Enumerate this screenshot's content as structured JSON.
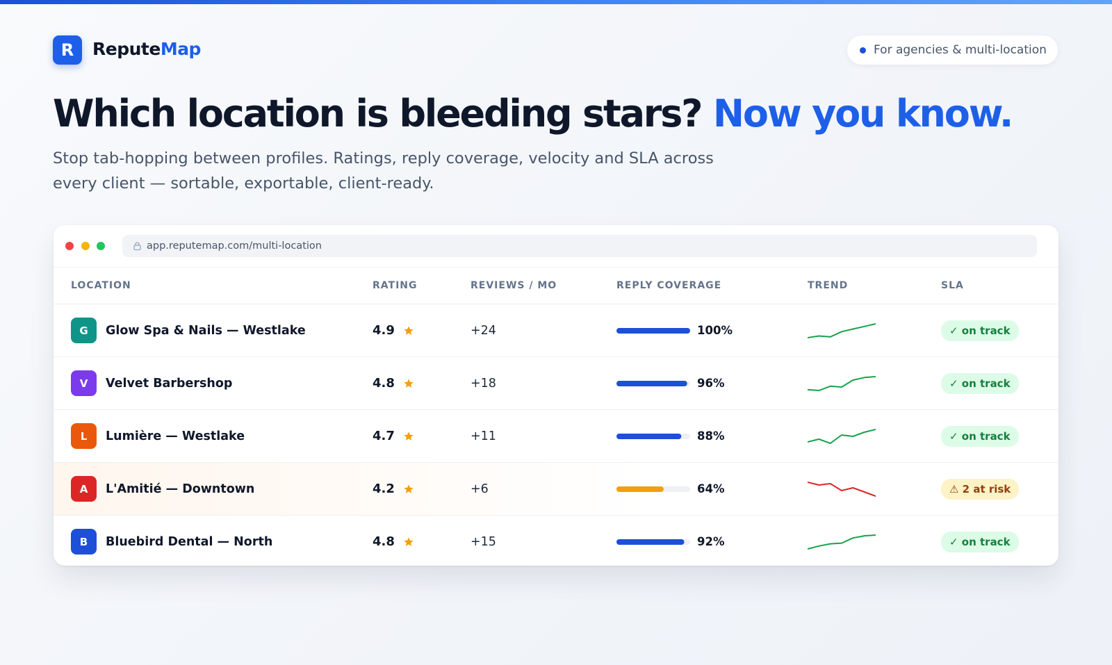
{
  "brand": {
    "letter": "R",
    "name": "Repute",
    "name_accent": "Map"
  },
  "badge": "For agencies & multi-location",
  "headline": {
    "main": "Which location is bleeding stars?",
    "accent": "Now you know."
  },
  "subtitle": "Stop tab-hopping between profiles. Ratings, reply coverage, velocity and SLA across every client — sortable, exportable, client-ready.",
  "window": {
    "url": "app.reputemap.com/multi-location"
  },
  "table": {
    "headers": [
      "LOCATION",
      "RATING",
      "REVIEWS / MO",
      "REPLY COVERAGE",
      "TREND",
      "SLA"
    ],
    "rows": [
      {
        "letter": "G",
        "avatar_color": "#0f9488",
        "name": "Glow Spa & Nails — Westlake",
        "rating": "4.9",
        "reviews": "+24",
        "coverage": {
          "value": 100,
          "label": "100%"
        },
        "bar_color": "#1d4fd8",
        "trend": [
          0,
          2,
          1,
          7,
          10,
          13,
          16
        ],
        "trend_color": "#16a34a",
        "sla": "✓ on track",
        "sla_bg": "#dcfce7",
        "sla_fg": "#15803d",
        "highlight": false
      },
      {
        "letter": "V",
        "avatar_color": "#7c3aed",
        "name": "Velvet Barbershop",
        "rating": "4.8",
        "reviews": "+18",
        "coverage": {
          "value": 96,
          "label": "96%"
        },
        "bar_color": "#1d4fd8",
        "trend": [
          1,
          0,
          5,
          4,
          12,
          15,
          16
        ],
        "trend_color": "#16a34a",
        "sla": "✓ on track",
        "sla_bg": "#dcfce7",
        "sla_fg": "#15803d",
        "highlight": false
      },
      {
        "letter": "L",
        "avatar_color": "#ea580c",
        "name": "Lumière — Westlake",
        "rating": "4.7",
        "reviews": "+11",
        "coverage": {
          "value": 88,
          "label": "88%"
        },
        "bar_color": "#1d4fd8",
        "trend": [
          1,
          3,
          0,
          6,
          5,
          8,
          10
        ],
        "trend_color": "#16a34a",
        "sla": "✓ on track",
        "sla_bg": "#dcfce7",
        "sla_fg": "#15803d",
        "highlight": false
      },
      {
        "letter": "A",
        "avatar_color": "#dc2626",
        "name": "L'Amitié — Downtown",
        "rating": "4.2",
        "reviews": "+6",
        "coverage": {
          "value": 64,
          "label": "64%"
        },
        "bar_color": "#f59e0b",
        "trend": [
          10,
          8,
          9,
          4,
          6,
          3,
          0
        ],
        "trend_color": "#dc2626",
        "sla": "⚠ 2 at risk",
        "sla_bg": "#fef3c7",
        "sla_fg": "#92400e",
        "highlight": true
      },
      {
        "letter": "B",
        "avatar_color": "#1d4fd8",
        "name": "Bluebird Dental — North",
        "rating": "4.8",
        "reviews": "+15",
        "coverage": {
          "value": 92,
          "label": "92%"
        },
        "bar_color": "#1d4fd8",
        "trend": [
          0,
          4,
          7,
          8,
          15,
          18,
          19
        ],
        "trend_color": "#16a34a",
        "sla": "✓ on track",
        "sla_bg": "#dcfce7",
        "sla_fg": "#15803d",
        "highlight": false
      }
    ]
  }
}
